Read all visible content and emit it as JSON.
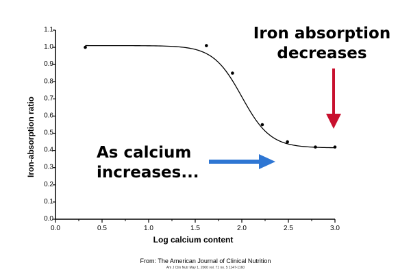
{
  "chart_data": {
    "type": "line",
    "title": "",
    "xlabel": "Log calcium content",
    "ylabel": "Iron-absorption ratio",
    "xlim": [
      0.0,
      3.0
    ],
    "ylim": [
      0.0,
      1.1
    ],
    "x_ticks": [
      "0.0",
      "0.5",
      "1.0",
      "1.5",
      "2.0",
      "2.5",
      "3.0"
    ],
    "y_ticks": [
      "0.0",
      "0.1",
      "0.2",
      "0.3",
      "0.4",
      "0.5",
      "0.6",
      "0.7",
      "0.8",
      "0.9",
      "1.0",
      "1.1"
    ],
    "points": [
      {
        "x": 0.32,
        "y": 1.0
      },
      {
        "x": 1.62,
        "y": 1.01
      },
      {
        "x": 1.9,
        "y": 0.85
      },
      {
        "x": 2.22,
        "y": 0.55
      },
      {
        "x": 2.49,
        "y": 0.45
      },
      {
        "x": 2.79,
        "y": 0.42
      },
      {
        "x": 3.0,
        "y": 0.42
      }
    ],
    "curve": {
      "top": 1.01,
      "bottom": 0.415,
      "midpoint": 2.0,
      "slope": 6.5
    },
    "grid": false,
    "annotations": [
      {
        "lines": [
          "Iron absorption",
          "decreases"
        ],
        "arrow_color": "#c8102e",
        "arrow_direction": "down"
      },
      {
        "lines": [
          "As calcium",
          "increases..."
        ],
        "arrow_color": "#2e76d3",
        "arrow_direction": "right"
      }
    ]
  },
  "source": {
    "title": "From: The American Journal of Clinical Nutrition",
    "ref": "Am J Clin Nutr May 1, 2000 vol. 71 no. 5 1147-1160"
  }
}
